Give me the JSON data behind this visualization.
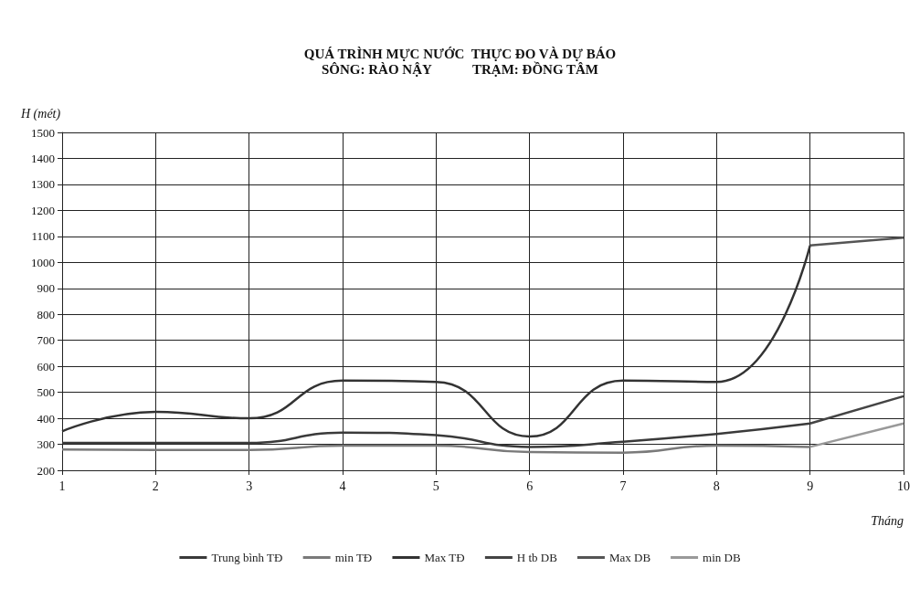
{
  "chart_data": {
    "type": "line",
    "title": "QUÁ TRÌNH MỰC NƯỚC  THỰC ĐO VÀ DỰ BÁO",
    "subtitle": "SÔNG: RÀO NẬY            TRẠM: ĐỒNG TÂM",
    "xlabel": "Tháng",
    "ylabel": "H (mét)",
    "series": [
      {
        "name": "Trung bình TĐ",
        "color": "#3a3a3a",
        "x": [
          1,
          2,
          3,
          4,
          5,
          6,
          7,
          8,
          9
        ],
        "values": [
          305,
          305,
          305,
          345,
          335,
          290,
          310,
          340,
          380
        ]
      },
      {
        "name": "min TĐ",
        "color": "#7a7a7a",
        "x": [
          1,
          2,
          3,
          4,
          5,
          6,
          7,
          8,
          9
        ],
        "values": [
          280,
          278,
          278,
          295,
          295,
          270,
          268,
          295,
          290
        ]
      },
      {
        "name": "Max TĐ",
        "color": "#333333",
        "x": [
          1,
          2,
          3,
          4,
          5,
          6,
          7,
          8,
          9
        ],
        "values": [
          350,
          425,
          400,
          545,
          540,
          330,
          545,
          540,
          1065
        ]
      },
      {
        "name": "H tb DB",
        "color": "#444444",
        "x": [
          9,
          10
        ],
        "values": [
          380,
          485
        ]
      },
      {
        "name": "Max DB",
        "color": "#555555",
        "x": [
          9,
          10
        ],
        "values": [
          1065,
          1095
        ]
      },
      {
        "name": "min DB",
        "color": "#999999",
        "x": [
          9,
          10
        ],
        "values": [
          290,
          380
        ]
      }
    ],
    "xlim": [
      1,
      10
    ],
    "xticks": [
      1,
      2,
      3,
      4,
      5,
      6,
      7,
      8,
      9,
      10
    ],
    "ylim": [
      200,
      1500
    ],
    "yticks": [
      200,
      300,
      400,
      500,
      600,
      700,
      800,
      900,
      1000,
      1100,
      1200,
      1300,
      1400,
      1500
    ],
    "grid": true,
    "legend": "bottom",
    "marker": "none",
    "line_style": "solid"
  }
}
